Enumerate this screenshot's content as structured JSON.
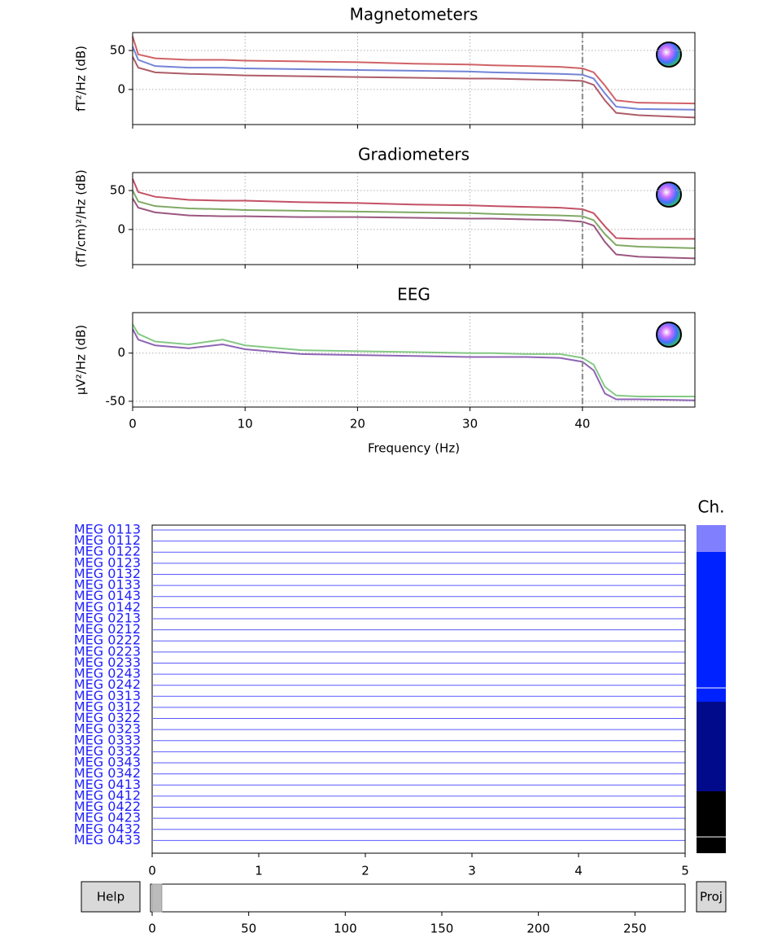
{
  "chart_data": [
    {
      "type": "line",
      "title": "Magnetometers",
      "ylabel": "fT²/Hz (dB)",
      "x": [
        0,
        0.5,
        2,
        5,
        8,
        10,
        15,
        20,
        25,
        30,
        32,
        35,
        38,
        40,
        41,
        42,
        43,
        45,
        50
      ],
      "xlim": [
        0,
        50
      ],
      "ylim": [
        -45,
        73
      ],
      "yticks": [
        0,
        50
      ],
      "grid": true,
      "vline": 40,
      "series": [
        {
          "color": "#c8464b",
          "values": [
            68,
            45,
            40,
            38,
            38,
            37,
            36,
            35,
            33,
            32,
            31,
            30,
            29,
            27,
            22,
            5,
            -14,
            -17,
            -18
          ]
        },
        {
          "color": "#5a6fd0",
          "values": [
            55,
            38,
            30,
            28,
            28,
            27,
            26,
            25,
            24,
            23,
            22,
            21,
            20,
            19,
            14,
            -5,
            -22,
            -25,
            -26
          ]
        },
        {
          "color": "#a0404e",
          "values": [
            42,
            28,
            22,
            20,
            19,
            18,
            17,
            16,
            15,
            14,
            14,
            13,
            12,
            11,
            6,
            -14,
            -30,
            -33,
            -36
          ]
        }
      ]
    },
    {
      "type": "line",
      "title": "Gradiometers",
      "ylabel": "(fT/cm)²/Hz (dB)",
      "x": [
        0,
        0.5,
        2,
        5,
        8,
        10,
        15,
        20,
        25,
        30,
        32,
        35,
        38,
        40,
        41,
        42,
        43,
        45,
        50
      ],
      "xlim": [
        0,
        50
      ],
      "ylim": [
        -45,
        73
      ],
      "yticks": [
        0,
        50
      ],
      "grid": true,
      "vline": 40,
      "series": [
        {
          "color": "#b8324a",
          "values": [
            65,
            48,
            42,
            38,
            37,
            37,
            35,
            34,
            32,
            31,
            30,
            29,
            28,
            26,
            21,
            4,
            -11,
            -12,
            -12
          ]
        },
        {
          "color": "#6a9a4a",
          "values": [
            50,
            36,
            30,
            27,
            26,
            25,
            24,
            23,
            22,
            21,
            20,
            19,
            18,
            17,
            12,
            -6,
            -20,
            -22,
            -24
          ]
        },
        {
          "color": "#8a3a6a",
          "values": [
            40,
            28,
            22,
            18,
            17,
            17,
            16,
            16,
            15,
            14,
            14,
            13,
            12,
            10,
            5,
            -16,
            -32,
            -35,
            -37
          ]
        }
      ]
    },
    {
      "type": "line",
      "title": "EEG",
      "ylabel": "µV²/Hz (dB)",
      "xlabel": "Frequency (Hz)",
      "x": [
        0,
        0.5,
        2,
        5,
        8,
        10,
        15,
        20,
        25,
        30,
        32,
        35,
        38,
        40,
        41,
        42,
        43,
        45,
        50
      ],
      "xlim": [
        0,
        50
      ],
      "xticks": [
        0,
        10,
        20,
        30,
        40
      ],
      "ylim": [
        -56,
        42
      ],
      "yticks": [
        -50,
        0
      ],
      "grid": true,
      "vline": 40,
      "series": [
        {
          "color": "#70c070",
          "values": [
            30,
            20,
            12,
            9,
            14,
            8,
            3,
            2,
            1,
            0,
            0,
            -1,
            -1,
            -5,
            -12,
            -35,
            -44,
            -45,
            -45
          ]
        },
        {
          "color": "#7a4aa8",
          "values": [
            25,
            14,
            8,
            5,
            9,
            4,
            -1,
            -2,
            -3,
            -4,
            -4,
            -4,
            -5,
            -9,
            -18,
            -42,
            -48,
            -48,
            -49
          ]
        }
      ]
    }
  ],
  "browser": {
    "channels": [
      "MEG 0113",
      "MEG 0112",
      "MEG 0122",
      "MEG 0123",
      "MEG 0132",
      "MEG 0133",
      "MEG 0143",
      "MEG 0142",
      "MEG 0213",
      "MEG 0212",
      "MEG 0222",
      "MEG 0223",
      "MEG 0233",
      "MEG 0243",
      "MEG 0242",
      "MEG 0313",
      "MEG 0312",
      "MEG 0322",
      "MEG 0323",
      "MEG 0333",
      "MEG 0332",
      "MEG 0343",
      "MEG 0342",
      "MEG 0413",
      "MEG 0412",
      "MEG 0422",
      "MEG 0423",
      "MEG 0432",
      "MEG 0433"
    ],
    "xlim": [
      0,
      5
    ],
    "xticks": [
      0,
      1,
      2,
      3,
      4,
      5
    ],
    "scroll": {
      "xlim": [
        0,
        276
      ],
      "xticks": [
        0,
        50,
        100,
        150,
        200,
        250
      ],
      "view": [
        0,
        5
      ]
    },
    "ch_label": "Ch.",
    "help": "Help",
    "proj": "Proj"
  }
}
